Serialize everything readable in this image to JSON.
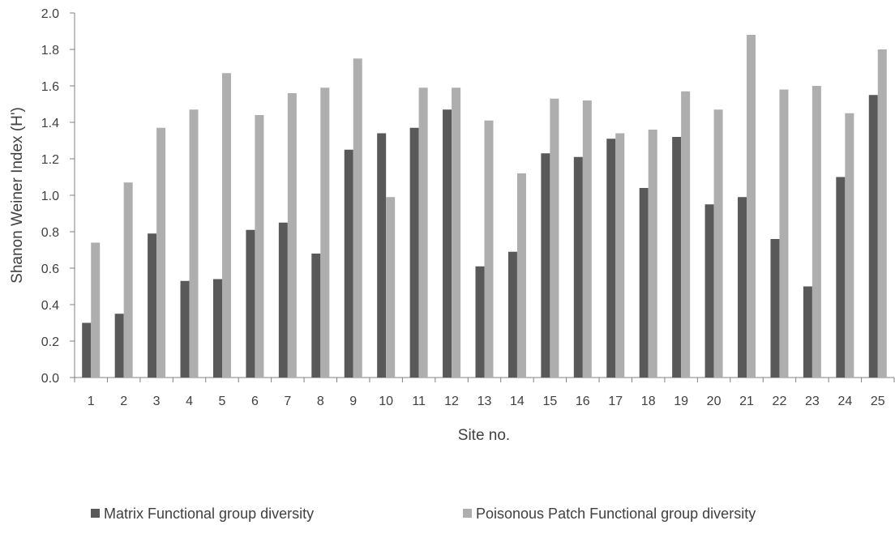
{
  "chart_data": {
    "type": "bar",
    "categories": [
      "1",
      "2",
      "3",
      "4",
      "5",
      "6",
      "7",
      "8",
      "9",
      "10",
      "11",
      "12",
      "13",
      "14",
      "15",
      "16",
      "17",
      "18",
      "19",
      "20",
      "21",
      "22",
      "23",
      "24",
      "25"
    ],
    "series": [
      {
        "name": "Matrix Functional group diversity",
        "color": "#595959",
        "values": [
          0.3,
          0.35,
          0.79,
          0.53,
          0.54,
          0.81,
          0.85,
          0.68,
          1.25,
          1.34,
          1.37,
          1.47,
          0.61,
          0.69,
          1.23,
          1.21,
          1.31,
          1.04,
          1.32,
          0.95,
          0.99,
          0.76,
          0.5,
          1.1,
          1.55
        ]
      },
      {
        "name": "Poisonous Patch Functional group diversity",
        "color": "#aeaeae",
        "values": [
          0.74,
          1.07,
          1.37,
          1.47,
          1.67,
          1.44,
          1.56,
          1.59,
          1.75,
          0.99,
          1.59,
          1.59,
          1.41,
          1.12,
          1.53,
          1.52,
          1.34,
          1.36,
          1.57,
          1.47,
          1.88,
          1.58,
          1.6,
          1.45,
          1.8
        ]
      }
    ],
    "xlabel": "Site no.",
    "ylabel": "Shanon Weiner Index (H')",
    "ylim": [
      0,
      2.0
    ],
    "yticks": [
      "0.0",
      "0.2",
      "0.4",
      "0.6",
      "0.8",
      "1.0",
      "1.2",
      "1.4",
      "1.6",
      "1.8",
      "2.0"
    ],
    "grid": false,
    "legend_position": "bottom"
  }
}
